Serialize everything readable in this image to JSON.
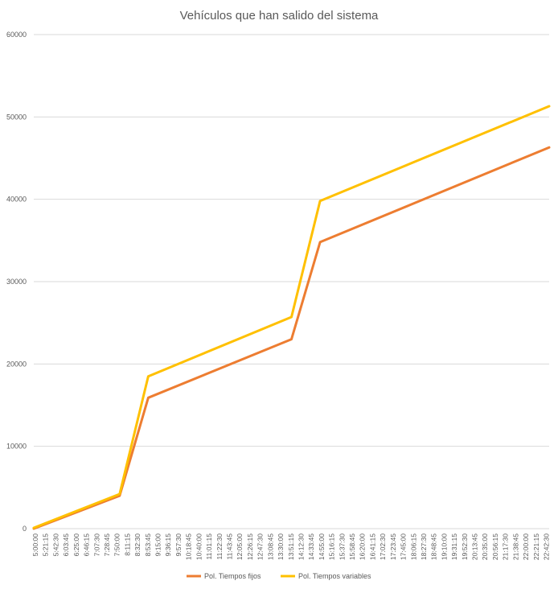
{
  "chart_data": {
    "type": "line",
    "title": "Vehículos que han salido del sistema",
    "xlabel": "",
    "ylabel": "",
    "ylim": [
      0,
      60000
    ],
    "yticks": [
      0,
      10000,
      20000,
      30000,
      40000,
      50000,
      60000
    ],
    "x_labels": [
      "5:00:00",
      "5:21:15",
      "5:42:30",
      "6:03:45",
      "6:25:00",
      "6:46:15",
      "7:07:30",
      "7:28:45",
      "7:50:00",
      "8:11:15",
      "8:32:30",
      "8:53:45",
      "9:15:00",
      "9:36:15",
      "9:57:30",
      "10:18:45",
      "10:40:00",
      "11:01:15",
      "11:22:30",
      "11:43:45",
      "12:05:00",
      "12:26:15",
      "12:47:30",
      "13:08:45",
      "13:30:00",
      "13:51:15",
      "14:12:30",
      "14:33:45",
      "14:55:00",
      "15:16:15",
      "15:37:30",
      "15:58:45",
      "16:20:00",
      "16:41:15",
      "17:02:30",
      "17:23:45",
      "17:45:00",
      "18:06:15",
      "18:27:30",
      "18:48:45",
      "19:10:00",
      "19:31:15",
      "19:52:30",
      "20:13:45",
      "20:35:00",
      "20:56:15",
      "21:17:30",
      "21:38:45",
      "22:00:00",
      "22:21:15",
      "22:42:30"
    ],
    "x_range": [
      "5:00:00",
      "23:00:00"
    ],
    "grid": true,
    "legend_position": "bottom",
    "series": [
      {
        "name": "Pol. Tiempos fijos",
        "color": "#ED7D31",
        "points": [
          {
            "x": "5:00:00",
            "y": 0
          },
          {
            "x": "8:00:00",
            "y": 4000
          },
          {
            "x": "9:00:00",
            "y": 15900
          },
          {
            "x": "14:00:00",
            "y": 23000
          },
          {
            "x": "15:00:00",
            "y": 34800
          },
          {
            "x": "23:00:00",
            "y": 46300
          }
        ]
      },
      {
        "name": "Pol. Tiempos variables",
        "color": "#FFC000",
        "points": [
          {
            "x": "5:00:00",
            "y": 100
          },
          {
            "x": "8:00:00",
            "y": 4200
          },
          {
            "x": "9:00:00",
            "y": 18500
          },
          {
            "x": "14:00:00",
            "y": 25700
          },
          {
            "x": "15:00:00",
            "y": 39800
          },
          {
            "x": "23:00:00",
            "y": 51300
          }
        ]
      }
    ]
  }
}
